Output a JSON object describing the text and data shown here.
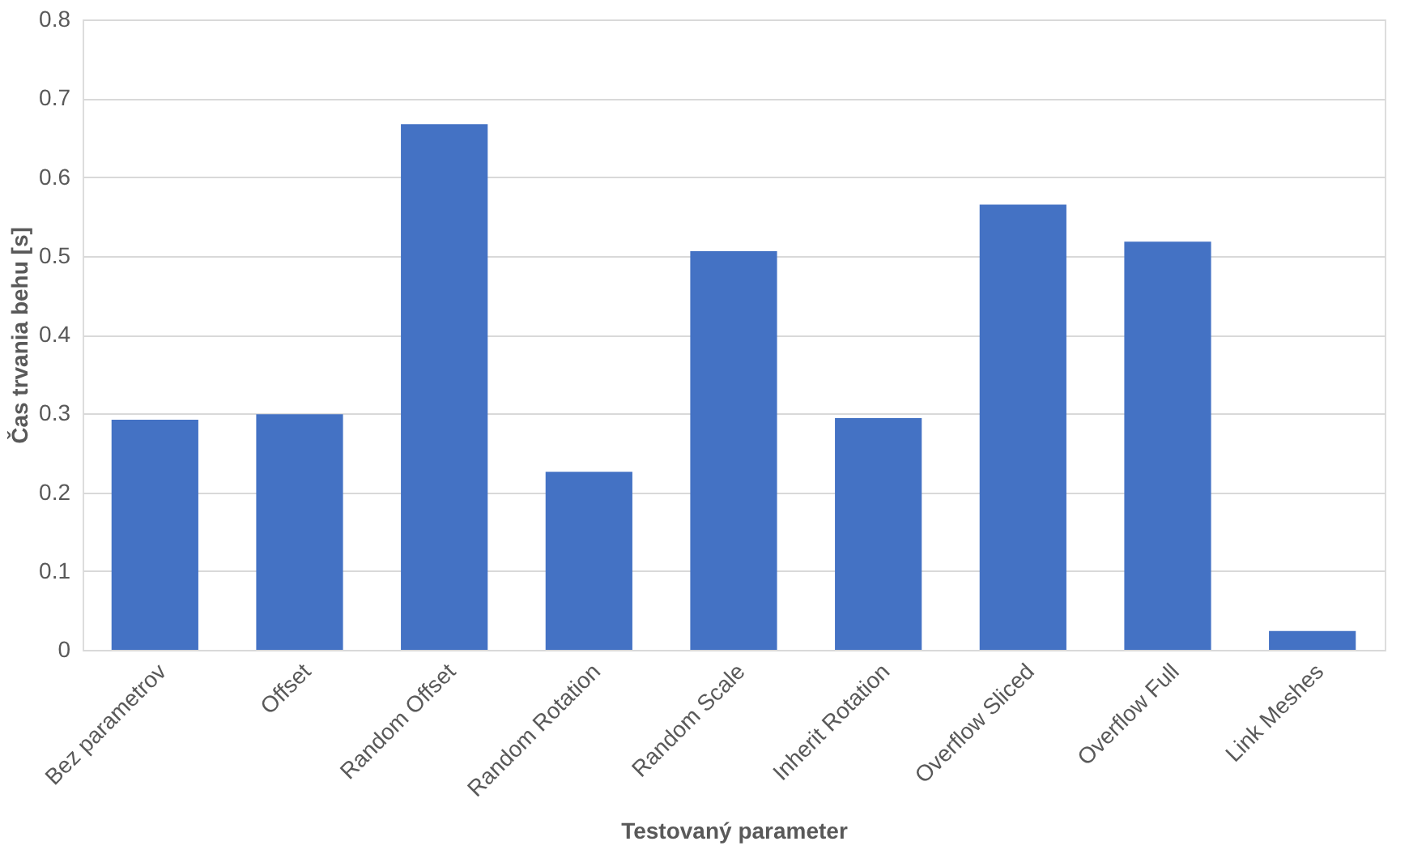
{
  "chart_data": {
    "type": "bar",
    "xlabel": "Testovaný parameter",
    "ylabel": "Čas trvania behu [s]",
    "categories": [
      "Bez parametrov",
      "Offset",
      "Random Offset",
      "Random Rotation",
      "Random Scale",
      "Inherit Rotation",
      "Overflow Sliced",
      "Overflow Full",
      "Link Meshes"
    ],
    "values": [
      0.292,
      0.299,
      0.667,
      0.226,
      0.506,
      0.294,
      0.565,
      0.518,
      0.024
    ],
    "color": "#4472c4",
    "ylim": [
      0,
      0.8
    ],
    "yticks": [
      0,
      0.1,
      0.2,
      0.3,
      0.4,
      0.5,
      0.6,
      0.7,
      0.8
    ],
    "grid": "y"
  }
}
